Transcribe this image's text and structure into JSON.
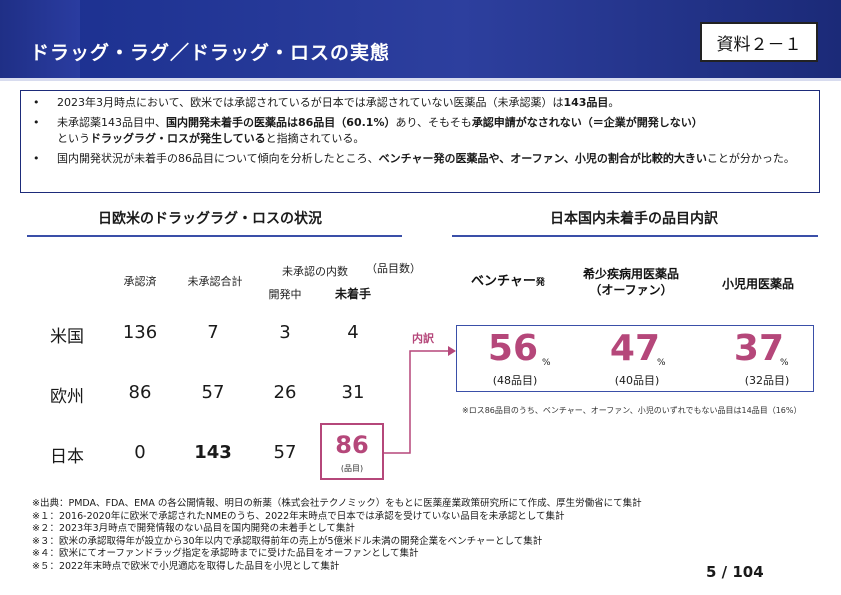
{
  "header": {
    "title": "ドラッグ・ラグ／ドラッグ・ロスの実態",
    "badge": "資料２－１"
  },
  "summary": {
    "b1_a": "2023年3月時点において、欧米では承認されているが日本では承認されていない医薬品（未承認薬）は",
    "b1_b": "143品目",
    "b1_c": "。",
    "b2_a": "未承認薬143品目中、",
    "b2_b": "国内開発未着手の医薬品は86品目（60.1%）",
    "b2_c": "あり、そもそも",
    "b2_d": "承認申請がなされない（＝企業が開発しない）",
    "b2_e": "という",
    "b2_f": "ドラッグラグ・ロスが発生している",
    "b2_g": "と指摘されている。",
    "b3_a": "国内開発状況が未着手の86品目について傾向を分析したところ、",
    "b3_b": "ベンチャー発の医薬品や、オーファン、小児の割合が比較的大きい",
    "b3_c": "ことが分かった。"
  },
  "left": {
    "title": "日欧米のドラッグラグ・ロスの状況",
    "unit": "（品目数）",
    "col_approved": "承認済",
    "col_unapproved_total": "未承認合計",
    "col_unapproved_breakdown": "未承認の内数",
    "col_in_dev": "開発中",
    "col_not_started": "未着手",
    "rows": [
      {
        "label": "米国",
        "approved": "136",
        "unapproved": "7",
        "in_dev": "3",
        "not_started": "4"
      },
      {
        "label": "欧州",
        "approved": "86",
        "unapproved": "57",
        "in_dev": "26",
        "not_started": "31"
      },
      {
        "label": "日本",
        "approved": "0",
        "unapproved": "143",
        "in_dev": "57",
        "not_started": "86"
      }
    ],
    "highlight_unit": "(品目)"
  },
  "connector": {
    "label": "内訳"
  },
  "right": {
    "title": "日本国内未着手の品目内訳",
    "cat1": "ベンチャー",
    "cat1_suffix": "発",
    "cat2_line1": "希少疾病用医薬品",
    "cat2_line2": "（オーファン）",
    "cat3": "小児用医薬品",
    "pct1": "56",
    "pct2": "47",
    "pct3": "37",
    "pct_sign": "%",
    "count1": "(48品目)",
    "count2": "(40品目)",
    "count3": "(32品目)",
    "note": "※ロス86品目のうち、ベンチャー、オーファン、小児のいずれでもない品目は14品目（16%）"
  },
  "footnotes": [
    "※出典：PMDA、FDA、EMA の各公開情報、明日の新薬（株式会社テクノミック）をもとに医薬産業政策研究所にて作成、厚生労働省にて集計",
    "※１：2016-2020年に欧米で承認されたNMEのうち、2022年末時点で日本では承認を受けていない品目を未承認として集計",
    "※２：2023年3月時点で開発情報のない品目を国内開発の未着手として集計",
    "※３：欧米の承認取得年が設立から30年以内で承認取得前年の売上が5億米ドル未満の開発企業をベンチャーとして集計",
    "※４：欧米にてオーファンドラッグ指定を承認時までに受けた品目をオーファンとして集計",
    "※５：2022年末時点で欧米で小児適応を取得した品目を小児として集計"
  ],
  "page": "5 / 104",
  "colors": {
    "brand": "#1a2f8f",
    "accent": "#b5477a"
  }
}
